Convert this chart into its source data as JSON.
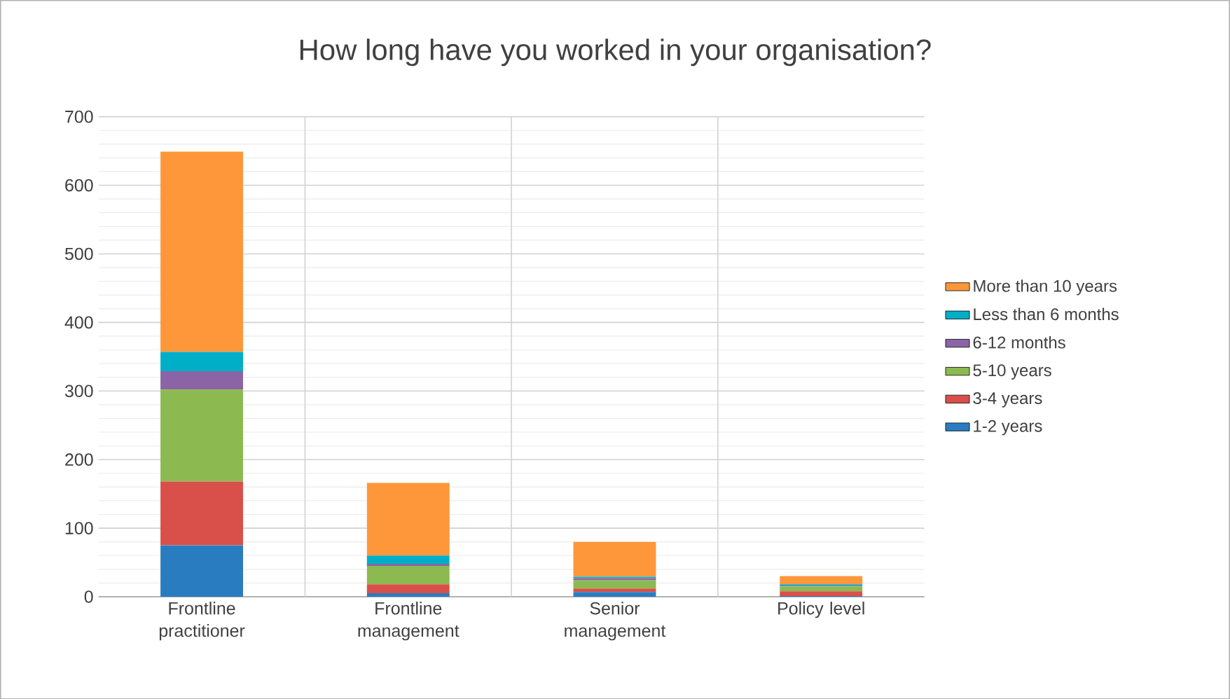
{
  "chart_data": {
    "type": "bar",
    "stacked": true,
    "title": "How long have you worked in your organisation?",
    "categories": [
      "Frontline practitioner",
      "Frontline management",
      "Senior management",
      "Policy level"
    ],
    "series": [
      {
        "name": "1-2 years",
        "color": "#2a7cc0",
        "values": [
          75,
          5,
          7,
          1
        ]
      },
      {
        "name": "3-4 years",
        "color": "#d9504a",
        "values": [
          93,
          13,
          5,
          7
        ]
      },
      {
        "name": "5-10 years",
        "color": "#8cba50",
        "values": [
          134,
          27,
          12,
          7
        ]
      },
      {
        "name": "6-12 months",
        "color": "#8a64a4",
        "values": [
          27,
          3,
          3,
          1
        ]
      },
      {
        "name": "Less than 6 months",
        "color": "#00aec8",
        "values": [
          28,
          12,
          2,
          2
        ]
      },
      {
        "name": "More than 10 years",
        "color": "#fd973a",
        "values": [
          292,
          106,
          51,
          12
        ]
      }
    ],
    "ylim": [
      0,
      700
    ],
    "yticks": [
      0,
      100,
      200,
      300,
      400,
      500,
      600,
      700
    ],
    "grid": true,
    "legend": "right"
  }
}
